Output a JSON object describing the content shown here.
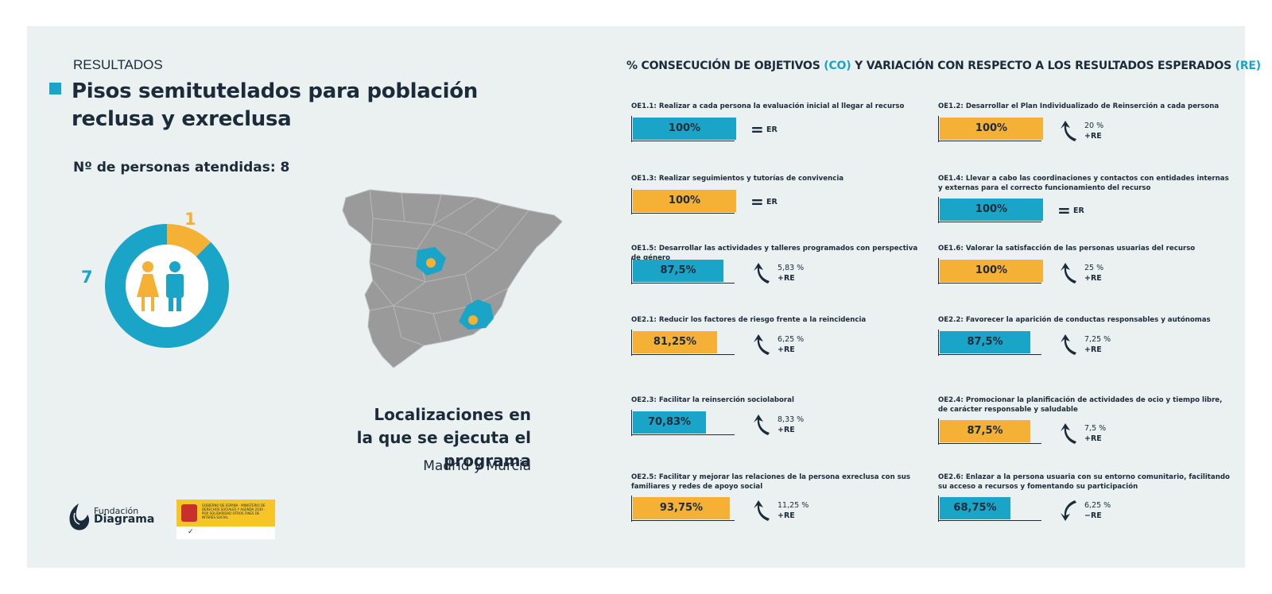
{
  "header": {
    "section": "RESULTADOS",
    "title": "Pisos semitutelados para población reclusa y exreclusa",
    "persons_label": "Nº de personas atendidas: 8"
  },
  "locations": {
    "title_line1": "Localizaciones en",
    "title_line2": "la que se ejecuta el programa",
    "names": "Madrid y Murcia"
  },
  "objectives_heading": {
    "part1": "% CONSECUCIÓN DE OBJETIVOS ",
    "co": "(CO)",
    "part2": " Y VARIACIÓN CON RESPECTO A LOS RESULTADOS ESPERADOS ",
    "re": "(RE)"
  },
  "logos": {
    "fundacion_line1": "Fundación",
    "fundacion_line2": "Diagrama",
    "gov_text": "GOBIERNO DE ESPAÑA · MINISTERIO DE DERECHOS SOCIALES Y AGENDA 2030 · POR SOLIDARIDAD OTROS FINES DE INTERÉS SOCIAL"
  },
  "colors": {
    "blue": "#1aa5c8",
    "orange": "#f5b036",
    "dark": "#1c2b3a",
    "map_gray": "#9a9a9a"
  },
  "chart_data": [
    {
      "type": "pie",
      "title": "Nº de personas atendidas: 8",
      "categories": [
        "mujeres",
        "hombres"
      ],
      "values": [
        1,
        7
      ],
      "colors": [
        "#f5b036",
        "#1aa5c8"
      ]
    },
    {
      "type": "bar",
      "title": "% CONSECUCIÓN DE OBJETIVOS (CO) Y VARIACIÓN CON RESPECTO A LOS RESULTADOS ESPERADOS (RE)",
      "ylim": [
        0,
        100
      ],
      "objectives": [
        {
          "label": "OE1.1: Realizar a cada persona la evaluación inicial al llegar al recurso",
          "value": 100,
          "value_label": "100%",
          "color": "blue",
          "variation": "equal",
          "var_value": "",
          "var_label": "ER"
        },
        {
          "label": "OE1.2: Desarrollar el Plan Individualizado de Reinserción a cada persona",
          "value": 100,
          "value_label": "100%",
          "color": "orange",
          "variation": "up",
          "var_value": "20 %",
          "var_label": "+RE"
        },
        {
          "label": "OE1.3: Realizar seguimientos y tutorías de convivencia",
          "value": 100,
          "value_label": "100%",
          "color": "orange",
          "variation": "equal",
          "var_value": "",
          "var_label": "ER"
        },
        {
          "label": "OE1.4: Llevar a cabo las coordinaciones y contactos con entidades internas y externas para el correcto funcionamiento del recurso",
          "value": 100,
          "value_label": "100%",
          "color": "blue",
          "variation": "equal",
          "var_value": "",
          "var_label": "ER"
        },
        {
          "label": "OE1.5: Desarrollar las actividades y talleres programados con perspectiva de género",
          "value": 87.5,
          "value_label": "87,5%",
          "color": "blue",
          "variation": "up",
          "var_value": "5,83 %",
          "var_label": "+RE"
        },
        {
          "label": "OE1.6: Valorar la satisfacción de las personas usuarias del recurso",
          "value": 100,
          "value_label": "100%",
          "color": "orange",
          "variation": "up",
          "var_value": "25 %",
          "var_label": "+RE"
        },
        {
          "label": "OE2.1: Reducir los factores de riesgo frente a la reincidencia",
          "value": 81.25,
          "value_label": "81,25%",
          "color": "orange",
          "variation": "up",
          "var_value": "6,25 %",
          "var_label": "+RE"
        },
        {
          "label": "OE2.2: Favorecer la aparición de conductas responsables y autónomas",
          "value": 87.5,
          "value_label": "87,5%",
          "color": "blue",
          "variation": "up",
          "var_value": "7,25 %",
          "var_label": "+RE"
        },
        {
          "label": "OE2.3: Facilitar la reinserción sociolaboral",
          "value": 70.83,
          "value_label": "70,83%",
          "color": "blue",
          "variation": "up",
          "var_value": "8,33 %",
          "var_label": "+RE"
        },
        {
          "label": "OE2.4: Promocionar la planificación de actividades de ocio y tiempo libre, de carácter responsable y saludable",
          "value": 87.5,
          "value_label": "87,5%",
          "color": "orange",
          "variation": "up",
          "var_value": "7,5 %",
          "var_label": "+RE"
        },
        {
          "label": "OE2.5: Facilitar y mejorar las relaciones de la persona exreclusa con sus familiares y redes de apoyo social",
          "value": 93.75,
          "value_label": "93,75%",
          "color": "orange",
          "variation": "up",
          "var_value": "11,25 %",
          "var_label": "+RE"
        },
        {
          "label": "OE2.6: Enlazar a la persona usuaria con su entorno comunitario, facilitando su acceso a recursos y fomentando su participación",
          "value": 68.75,
          "value_label": "68,75%",
          "color": "blue",
          "variation": "down",
          "var_value": "6,25 %",
          "var_label": "−RE"
        }
      ]
    }
  ]
}
